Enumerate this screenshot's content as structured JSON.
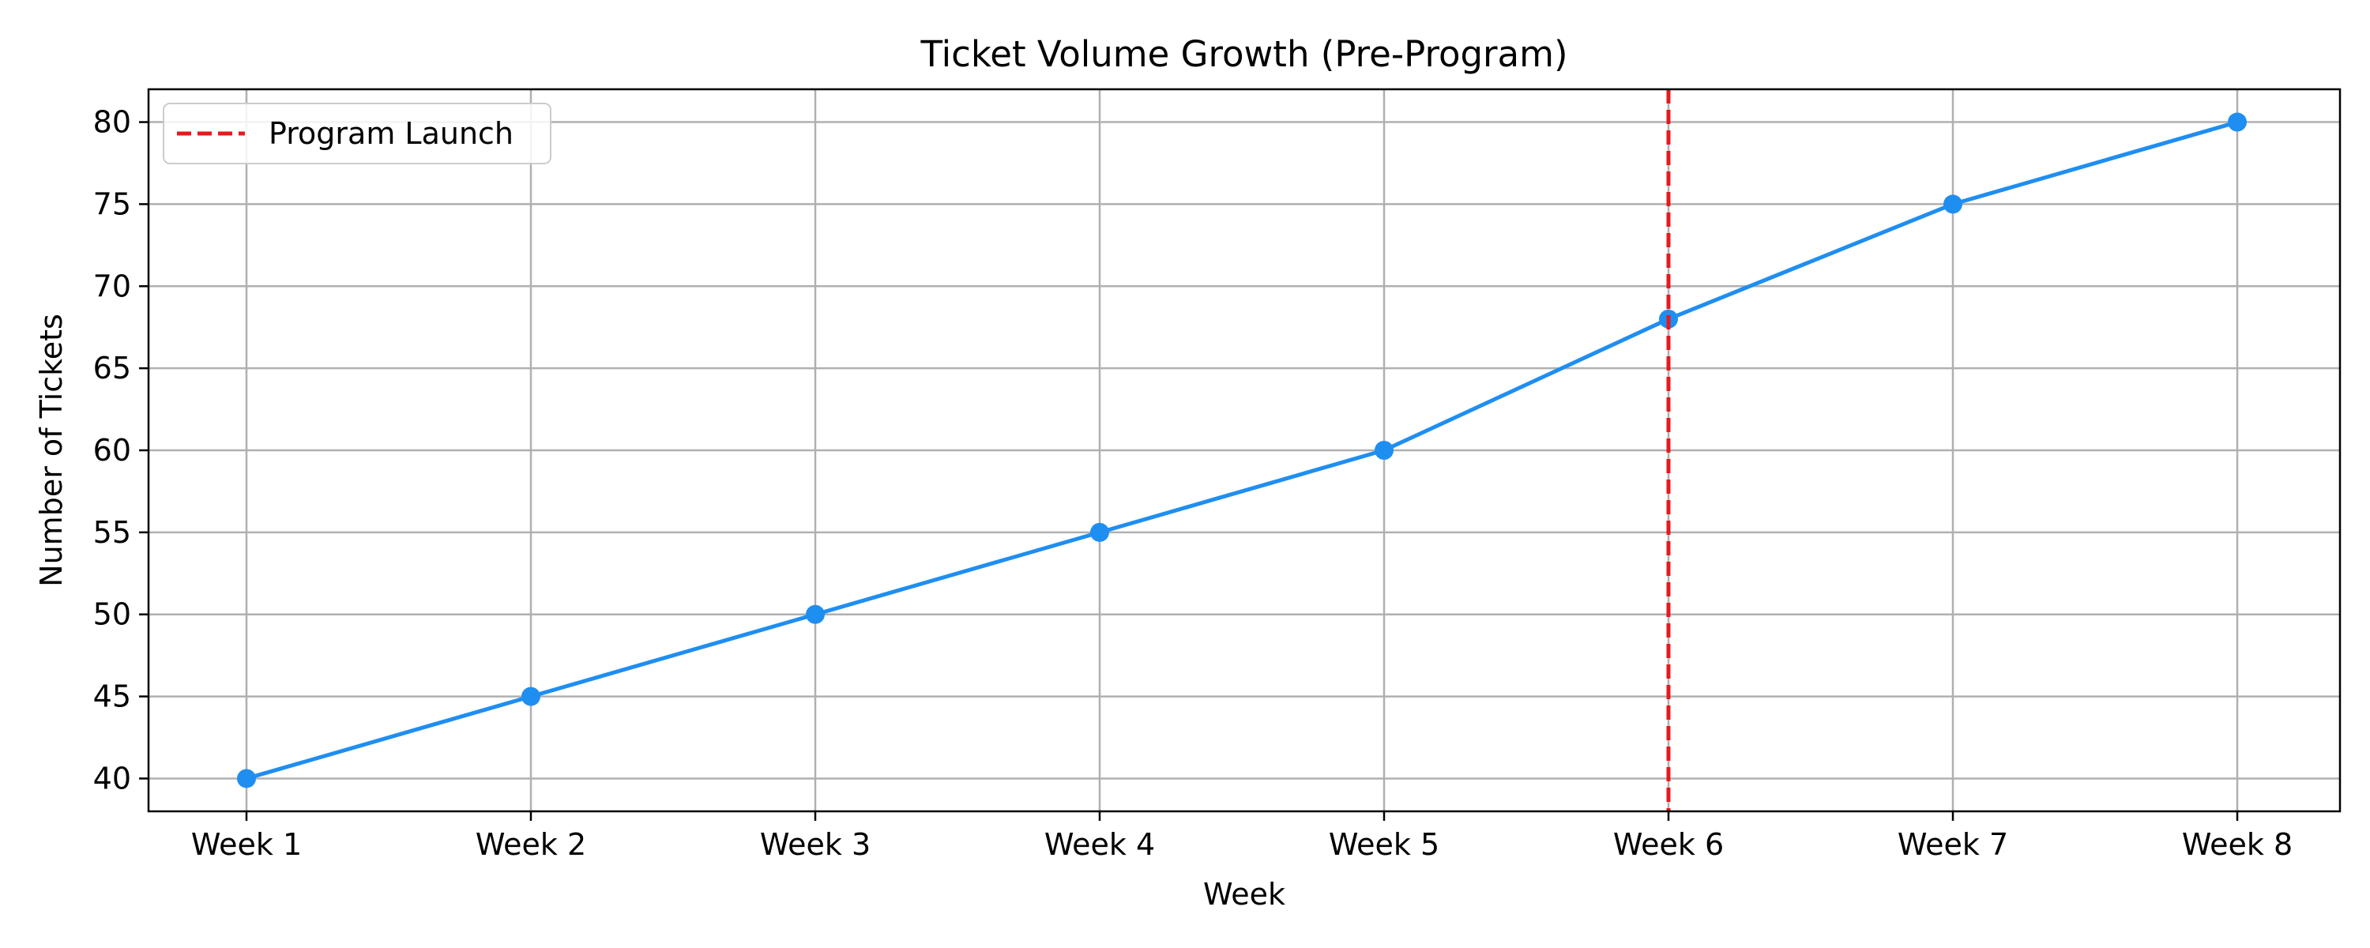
{
  "chart_data": {
    "type": "line",
    "title": "Ticket Volume Growth (Pre-Program)",
    "xlabel": "Week",
    "ylabel": "Number of Tickets",
    "categories": [
      "Week 1",
      "Week 2",
      "Week 3",
      "Week 4",
      "Week 5",
      "Week 6",
      "Week 7",
      "Week 8"
    ],
    "series": [
      {
        "values": [
          40,
          45,
          50,
          55,
          60,
          68,
          75,
          80
        ],
        "color": "#1f8ef1",
        "marker": "circle"
      }
    ],
    "yticks": [
      40,
      45,
      50,
      55,
      60,
      65,
      70,
      75,
      80
    ],
    "ylim": [
      38,
      82
    ],
    "grid": true,
    "annotations": [
      {
        "type": "vertical-line",
        "category": "Week 6",
        "label": "Program Launch",
        "color": "#e41a1c",
        "style": "dashed"
      }
    ],
    "legend": {
      "position": "top-left",
      "entries": [
        "Program Launch"
      ]
    }
  }
}
